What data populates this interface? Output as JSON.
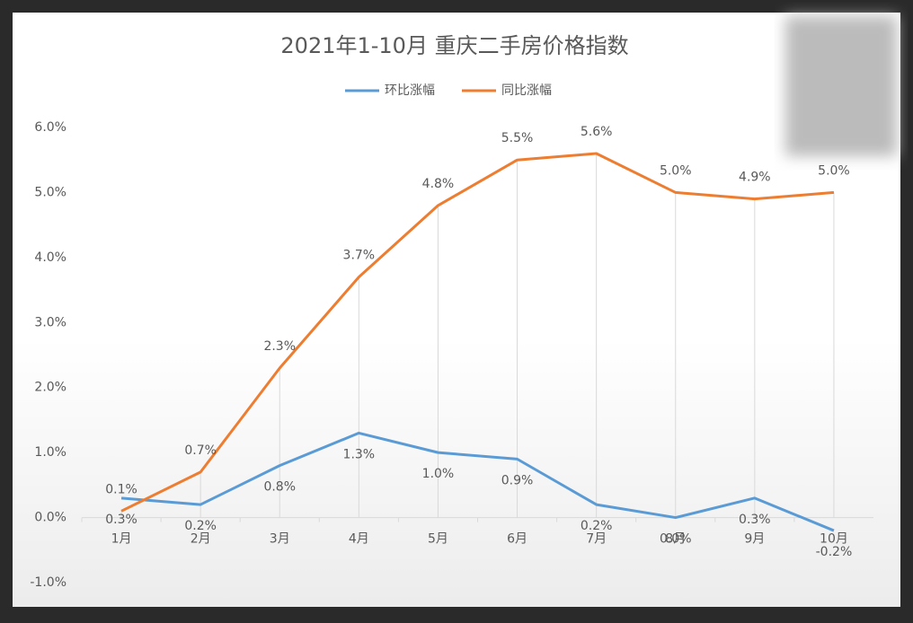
{
  "chart_data": {
    "type": "line",
    "title": "2021年1-10月 重庆二手房价格指数",
    "categories": [
      "1月",
      "2月",
      "3月",
      "4月",
      "5月",
      "6月",
      "7月",
      "8月",
      "9月",
      "10月"
    ],
    "series": [
      {
        "name": "环比涨幅",
        "color": "#5b9bd5",
        "values": [
          0.3,
          0.2,
          0.8,
          1.3,
          1.0,
          0.9,
          0.2,
          0.0,
          0.3,
          -0.2
        ],
        "value_labels": [
          "0.3%",
          "0.2%",
          "0.8%",
          "1.3%",
          "1.0%",
          "0.9%",
          "0.2%",
          "0.0%",
          "0.3%",
          "-0.2%"
        ]
      },
      {
        "name": "同比涨幅",
        "color": "#ed7d31",
        "values": [
          0.1,
          0.7,
          2.3,
          3.7,
          4.8,
          5.5,
          5.6,
          5.0,
          4.9,
          5.0
        ],
        "value_labels": [
          "0.1%",
          "0.7%",
          "2.3%",
          "3.7%",
          "4.8%",
          "5.5%",
          "5.6%",
          "5.0%",
          "4.9%",
          "5.0%"
        ]
      }
    ],
    "ylim": [
      -1,
      6
    ],
    "yticks": [
      {
        "value": -1,
        "label": "-1.0%"
      },
      {
        "value": 0,
        "label": "0.0%"
      },
      {
        "value": 1,
        "label": "1.0%"
      },
      {
        "value": 2,
        "label": "2.0%"
      },
      {
        "value": 3,
        "label": "3.0%"
      },
      {
        "value": 4,
        "label": "4.0%"
      },
      {
        "value": 5,
        "label": "5.0%"
      },
      {
        "value": 6,
        "label": "6.0%"
      }
    ],
    "grid": false,
    "legend": "top"
  }
}
